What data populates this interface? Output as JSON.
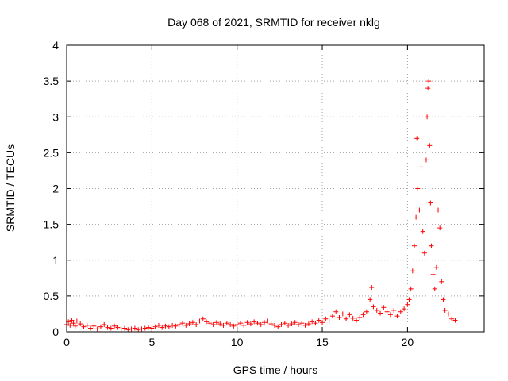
{
  "chart_data": {
    "type": "scatter",
    "title": "Day 068 of 2021, SRMTID for receiver nklg",
    "xlabel": "GPS time / hours",
    "ylabel": "SRMTID / TECUs",
    "xlim": [
      0,
      24.5
    ],
    "ylim": [
      0,
      4
    ],
    "x_ticks": [
      "0",
      "5",
      "10",
      "15",
      "20"
    ],
    "x_tick_values": [
      0,
      5,
      10,
      15,
      20
    ],
    "y_ticks": [
      "0",
      "0.5",
      "1",
      "1.5",
      "2",
      "2.5",
      "3",
      "3.5",
      "4"
    ],
    "y_tick_values": [
      0,
      0.5,
      1,
      1.5,
      2,
      2.5,
      3,
      3.5,
      4
    ],
    "grid": true,
    "marker": "+",
    "marker_color": "#ff0000",
    "series": [
      {
        "name": "SRMTID",
        "points": [
          [
            0.0,
            0.1
          ],
          [
            0.1,
            0.14
          ],
          [
            0.2,
            0.09
          ],
          [
            0.3,
            0.16
          ],
          [
            0.4,
            0.12
          ],
          [
            0.5,
            0.08
          ],
          [
            0.6,
            0.15
          ],
          [
            0.8,
            0.11
          ],
          [
            1.0,
            0.07
          ],
          [
            1.2,
            0.09
          ],
          [
            1.4,
            0.05
          ],
          [
            1.6,
            0.08
          ],
          [
            1.8,
            0.04
          ],
          [
            2.0,
            0.07
          ],
          [
            2.2,
            0.1
          ],
          [
            2.4,
            0.06
          ],
          [
            2.6,
            0.05
          ],
          [
            2.8,
            0.08
          ],
          [
            3.0,
            0.06
          ],
          [
            3.2,
            0.04
          ],
          [
            3.4,
            0.05
          ],
          [
            3.6,
            0.03
          ],
          [
            3.8,
            0.04
          ],
          [
            4.0,
            0.05
          ],
          [
            4.2,
            0.03
          ],
          [
            4.4,
            0.04
          ],
          [
            4.6,
            0.05
          ],
          [
            4.8,
            0.06
          ],
          [
            5.0,
            0.05
          ],
          [
            5.2,
            0.07
          ],
          [
            5.4,
            0.09
          ],
          [
            5.6,
            0.06
          ],
          [
            5.8,
            0.08
          ],
          [
            6.0,
            0.07
          ],
          [
            6.2,
            0.09
          ],
          [
            6.4,
            0.08
          ],
          [
            6.6,
            0.1
          ],
          [
            6.8,
            0.12
          ],
          [
            7.0,
            0.09
          ],
          [
            7.2,
            0.11
          ],
          [
            7.4,
            0.13
          ],
          [
            7.6,
            0.1
          ],
          [
            7.8,
            0.15
          ],
          [
            8.0,
            0.18
          ],
          [
            8.2,
            0.14
          ],
          [
            8.4,
            0.12
          ],
          [
            8.6,
            0.1
          ],
          [
            8.8,
            0.13
          ],
          [
            9.0,
            0.11
          ],
          [
            9.2,
            0.09
          ],
          [
            9.4,
            0.12
          ],
          [
            9.6,
            0.1
          ],
          [
            9.8,
            0.08
          ],
          [
            10.0,
            0.1
          ],
          [
            10.2,
            0.12
          ],
          [
            10.4,
            0.09
          ],
          [
            10.6,
            0.13
          ],
          [
            10.8,
            0.11
          ],
          [
            11.0,
            0.14
          ],
          [
            11.2,
            0.12
          ],
          [
            11.4,
            0.1
          ],
          [
            11.6,
            0.13
          ],
          [
            11.8,
            0.15
          ],
          [
            12.0,
            0.11
          ],
          [
            12.2,
            0.09
          ],
          [
            12.4,
            0.07
          ],
          [
            12.6,
            0.1
          ],
          [
            12.8,
            0.12
          ],
          [
            13.0,
            0.09
          ],
          [
            13.2,
            0.11
          ],
          [
            13.4,
            0.13
          ],
          [
            13.6,
            0.1
          ],
          [
            13.8,
            0.12
          ],
          [
            14.0,
            0.09
          ],
          [
            14.2,
            0.11
          ],
          [
            14.4,
            0.14
          ],
          [
            14.6,
            0.12
          ],
          [
            14.8,
            0.16
          ],
          [
            15.0,
            0.13
          ],
          [
            15.2,
            0.18
          ],
          [
            15.4,
            0.15
          ],
          [
            15.6,
            0.22
          ],
          [
            15.8,
            0.28
          ],
          [
            16.0,
            0.2
          ],
          [
            16.2,
            0.25
          ],
          [
            16.4,
            0.18
          ],
          [
            16.6,
            0.24
          ],
          [
            16.8,
            0.19
          ],
          [
            17.0,
            0.16
          ],
          [
            17.2,
            0.2
          ],
          [
            17.4,
            0.24
          ],
          [
            17.6,
            0.28
          ],
          [
            17.8,
            0.45
          ],
          [
            17.9,
            0.62
          ],
          [
            18.0,
            0.35
          ],
          [
            18.2,
            0.3
          ],
          [
            18.4,
            0.26
          ],
          [
            18.6,
            0.34
          ],
          [
            18.8,
            0.28
          ],
          [
            19.0,
            0.24
          ],
          [
            19.2,
            0.3
          ],
          [
            19.4,
            0.22
          ],
          [
            19.6,
            0.28
          ],
          [
            19.8,
            0.32
          ],
          [
            20.0,
            0.38
          ],
          [
            20.1,
            0.45
          ],
          [
            20.2,
            0.6
          ],
          [
            20.3,
            0.85
          ],
          [
            20.4,
            1.2
          ],
          [
            20.5,
            1.6
          ],
          [
            20.55,
            2.7
          ],
          [
            20.6,
            2.0
          ],
          [
            20.7,
            1.7
          ],
          [
            20.8,
            2.3
          ],
          [
            20.9,
            1.4
          ],
          [
            21.0,
            1.1
          ],
          [
            21.1,
            2.4
          ],
          [
            21.15,
            3.0
          ],
          [
            21.2,
            3.4
          ],
          [
            21.25,
            3.5
          ],
          [
            21.3,
            2.6
          ],
          [
            21.35,
            1.8
          ],
          [
            21.4,
            1.2
          ],
          [
            21.5,
            0.8
          ],
          [
            21.6,
            0.6
          ],
          [
            21.7,
            0.9
          ],
          [
            21.8,
            1.7
          ],
          [
            21.9,
            1.45
          ],
          [
            22.0,
            0.7
          ],
          [
            22.1,
            0.45
          ],
          [
            22.2,
            0.3
          ],
          [
            22.4,
            0.25
          ],
          [
            22.6,
            0.18
          ],
          [
            22.8,
            0.16
          ]
        ]
      }
    ]
  }
}
